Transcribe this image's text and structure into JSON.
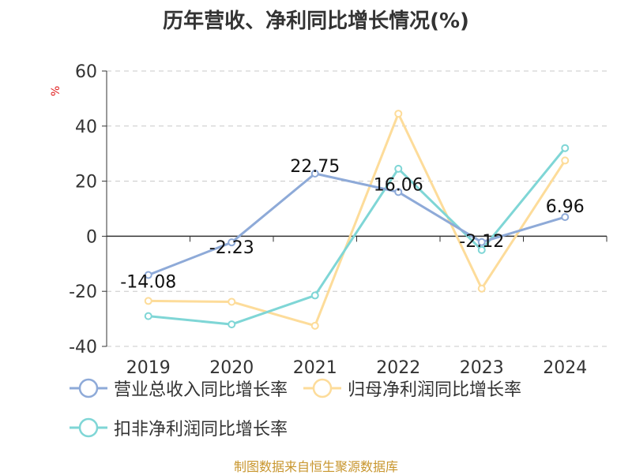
{
  "chart_data": {
    "type": "line",
    "title": "历年营收、净利同比增长情况(%)",
    "ylabel": "%",
    "categories": [
      "2019",
      "2020",
      "2021",
      "2022",
      "2023",
      "2024"
    ],
    "ylim": [
      -40,
      60
    ],
    "yticks": [
      "60",
      "40",
      "20",
      "0",
      "-20",
      "-40"
    ],
    "grid": true,
    "legend_position": "bottom",
    "series": [
      {
        "name": "营业总收入同比增长率",
        "color": "#8eaad8",
        "values": [
          -14.08,
          -2.23,
          22.75,
          16.06,
          -2.12,
          6.96
        ],
        "labels": [
          "-14.08",
          "-2.23",
          "22.75",
          "16.06",
          "-2.12",
          "6.96"
        ]
      },
      {
        "name": "归母净利润同比增长率",
        "color": "#fddc9a",
        "values": [
          -23.5,
          -23.8,
          -32.5,
          44.5,
          -19.0,
          27.5
        ]
      },
      {
        "name": "扣非净利润同比增长率",
        "color": "#7fd6d6",
        "values": [
          -29.0,
          -32.0,
          -21.5,
          24.5,
          -5.0,
          32.0
        ]
      }
    ]
  },
  "footer": {
    "source": "制图数据来自恒生聚源数据库"
  }
}
